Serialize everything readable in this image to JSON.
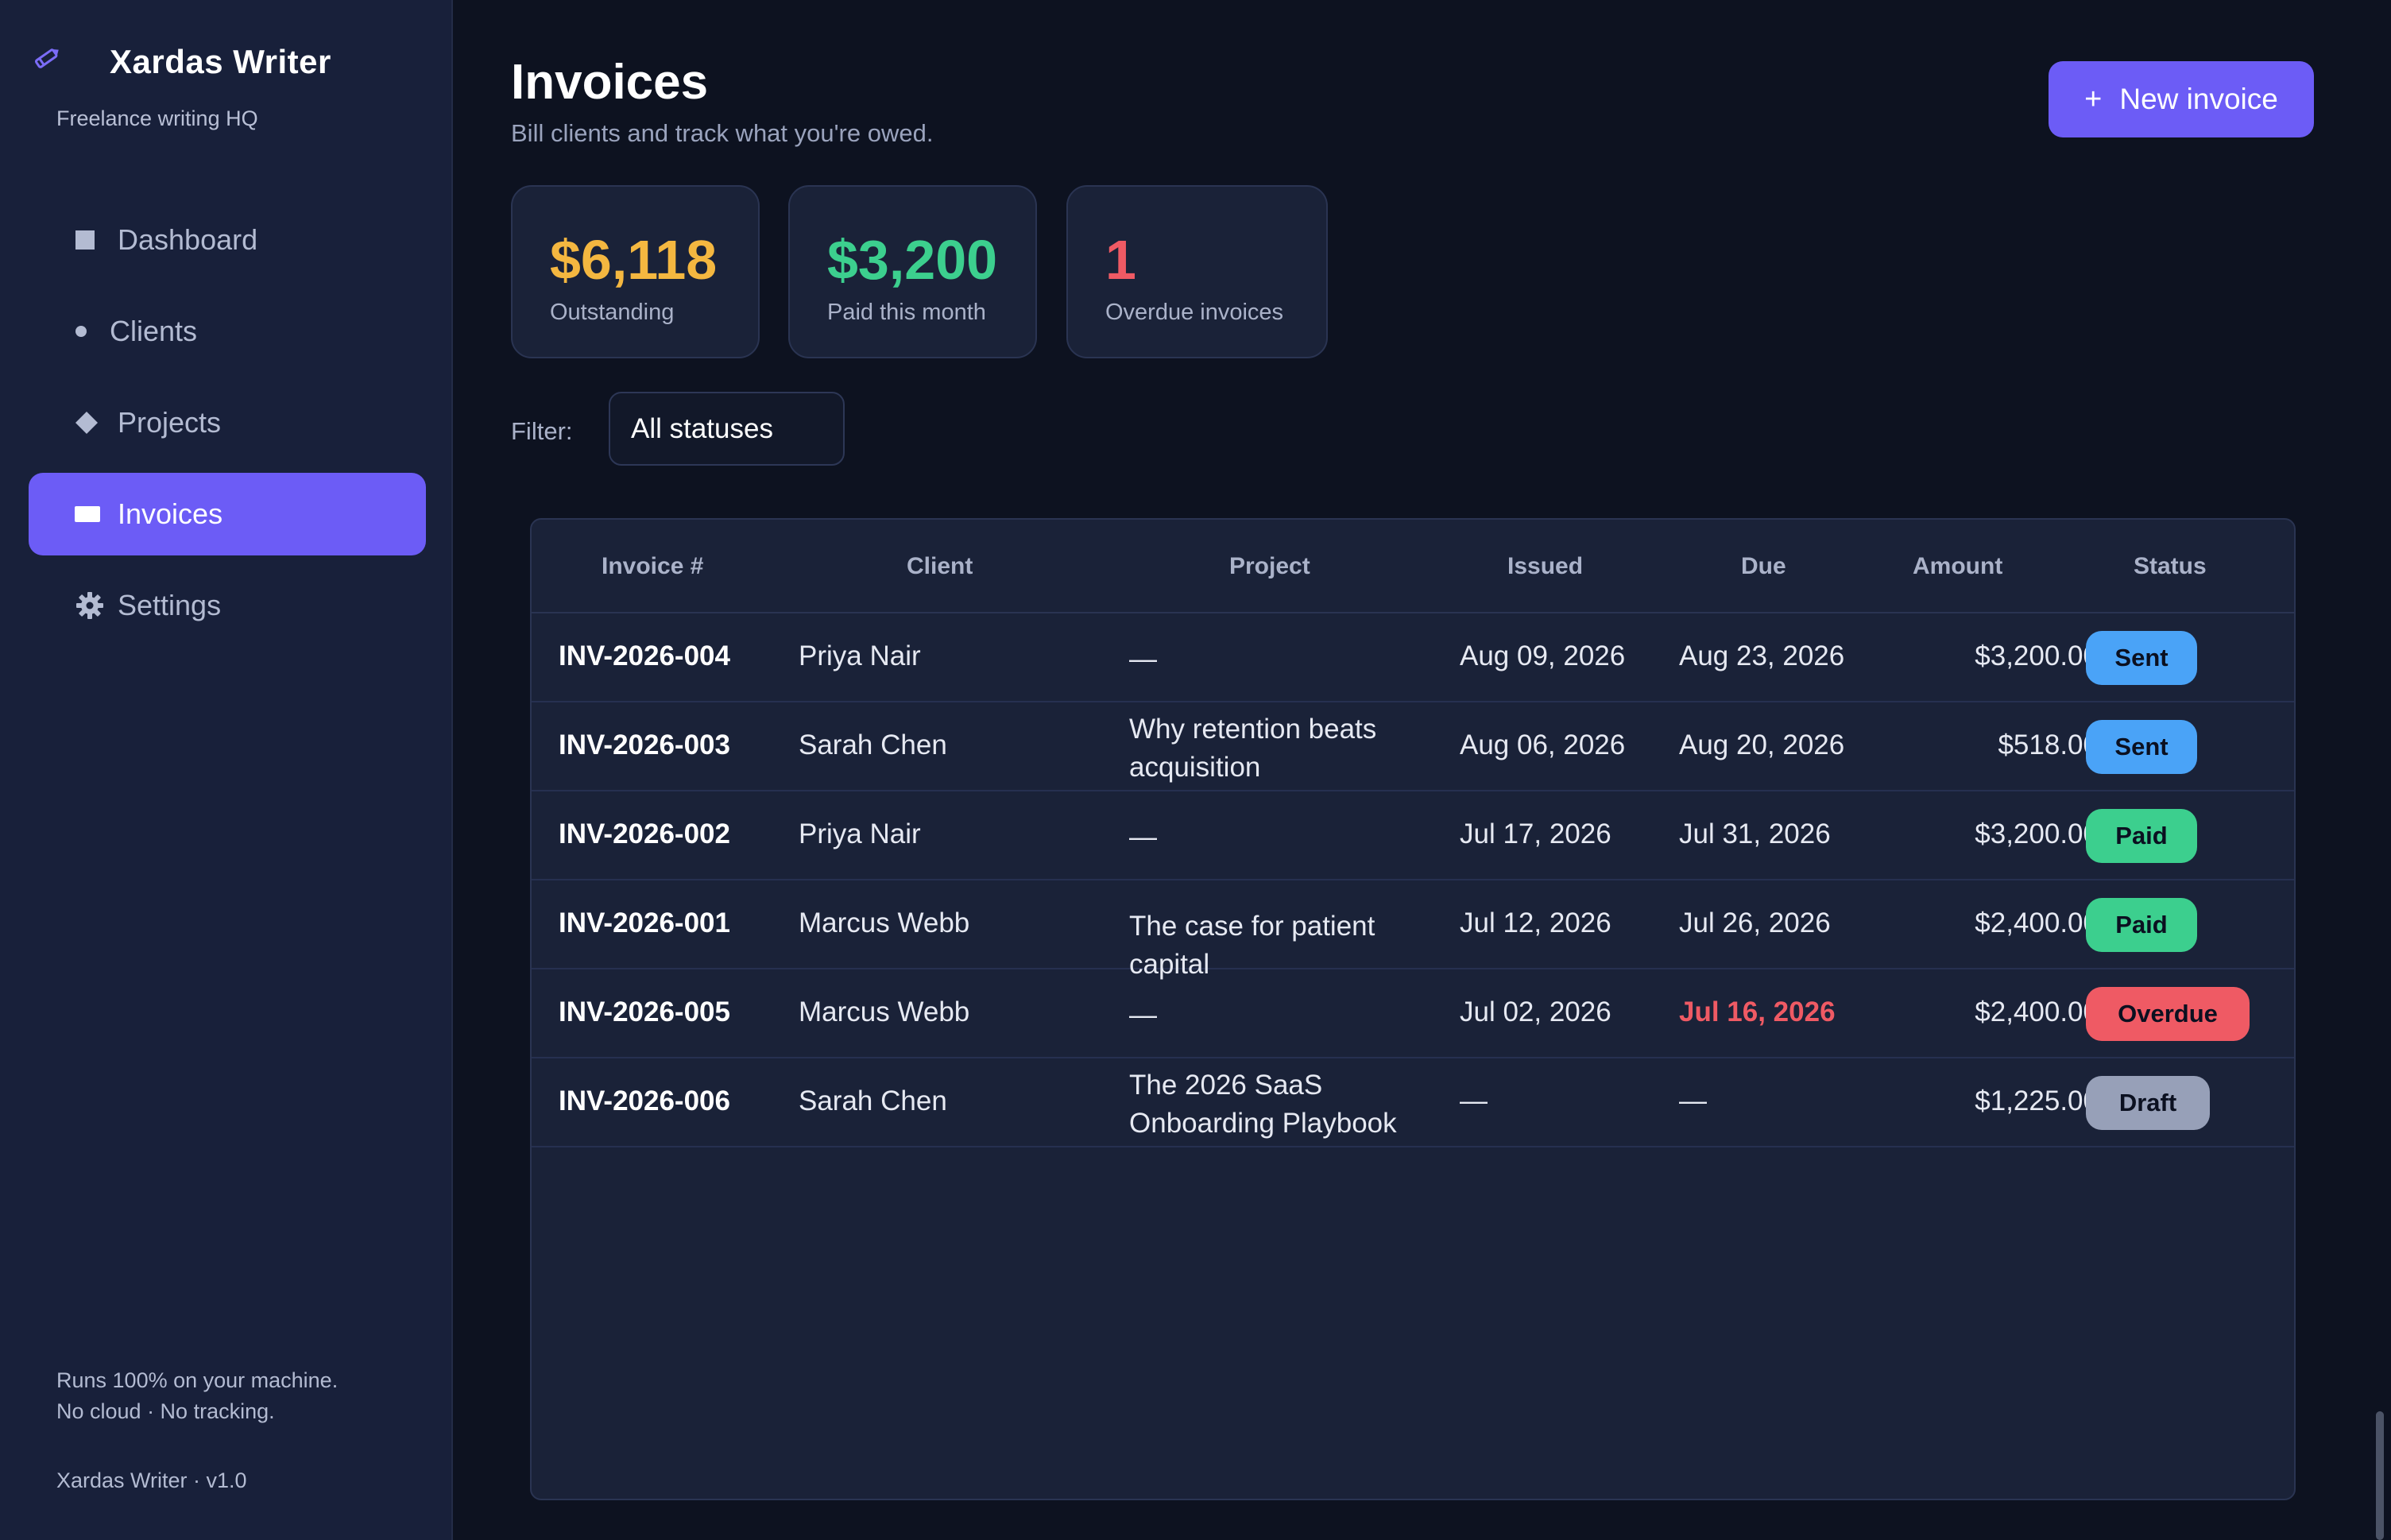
{
  "app": {
    "name": "Xardas Writer",
    "tagline": "Freelance writing HQ",
    "footer_line1": "Runs 100% on your machine.",
    "footer_line2": "No cloud · No tracking.",
    "version": "Xardas Writer · v1.0"
  },
  "sidebar": {
    "items": [
      {
        "label": "Dashboard",
        "icon": "square-icon"
      },
      {
        "label": "Clients",
        "icon": "dot-icon"
      },
      {
        "label": "Projects",
        "icon": "diamond-icon"
      },
      {
        "label": "Invoices",
        "icon": "card-icon",
        "active": true
      },
      {
        "label": "Settings",
        "icon": "gear-icon"
      }
    ]
  },
  "header": {
    "title": "Invoices",
    "subtitle": "Bill clients and track what you're owed.",
    "new_button": "New invoice",
    "new_button_icon": "+"
  },
  "stats": [
    {
      "value": "$6,118",
      "label": "Outstanding",
      "color": "#f4b740"
    },
    {
      "value": "$3,200",
      "label": "Paid this month",
      "color": "#3ccf8e"
    },
    {
      "value": "1",
      "label": "Overdue invoices",
      "color": "#ef5a64"
    }
  ],
  "filter": {
    "label": "Filter:",
    "selected": "All statuses"
  },
  "table": {
    "columns": [
      "Invoice #",
      "Client",
      "Project",
      "Issued",
      "Due",
      "Amount",
      "Status"
    ],
    "rows": [
      {
        "invoice": "INV-2026-004",
        "client": "Priya Nair",
        "project": "—",
        "issued": "Aug 09, 2026",
        "due": "Aug 23, 2026",
        "amount": "$3,200.00",
        "status": "Sent"
      },
      {
        "invoice": "INV-2026-003",
        "client": "Sarah Chen",
        "project": "Why retention beats acquisition",
        "issued": "Aug 06, 2026",
        "due": "Aug 20, 2026",
        "amount": "$518.00",
        "status": "Sent"
      },
      {
        "invoice": "INV-2026-002",
        "client": "Priya Nair",
        "project": "—",
        "issued": "Jul 17, 2026",
        "due": "Jul 31, 2026",
        "amount": "$3,200.00",
        "status": "Paid"
      },
      {
        "invoice": "INV-2026-001",
        "client": "Marcus Webb",
        "project": "The case for patient capital",
        "issued": "Jul 12, 2026",
        "due": "Jul 26, 2026",
        "amount": "$2,400.00",
        "status": "Paid"
      },
      {
        "invoice": "INV-2026-005",
        "client": "Marcus Webb",
        "project": "—",
        "issued": "Jul 02, 2026",
        "due": "Jul 16, 2026",
        "amount": "$2,400.00",
        "status": "Overdue"
      },
      {
        "invoice": "INV-2026-006",
        "client": "Sarah Chen",
        "project": "The 2026 SaaS Onboarding Playbook",
        "issued": "—",
        "due": "—",
        "amount": "$1,225.00",
        "status": "Draft"
      }
    ]
  },
  "status_colors": {
    "Sent": "#4aa3f7",
    "Paid": "#3ccf8e",
    "Overdue": "#ef5a64",
    "Draft": "#97a0b8"
  },
  "accent": "#6c5cf6"
}
